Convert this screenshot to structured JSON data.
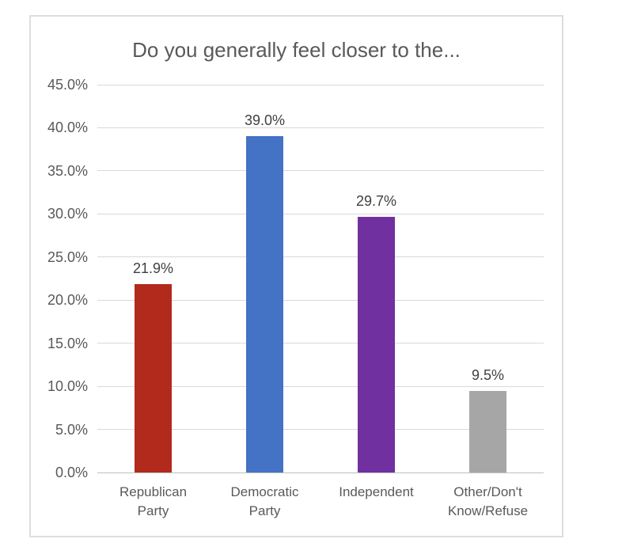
{
  "chart_data": {
    "type": "bar",
    "title": "Do you generally feel closer to the...",
    "categories": [
      "Republican Party",
      "Democratic Party",
      "Independent",
      "Other/Don't Know/Refuse"
    ],
    "values": [
      21.9,
      39.0,
      29.7,
      9.5
    ],
    "data_labels": [
      "21.9%",
      "39.0%",
      "29.7%",
      "9.5%"
    ],
    "bar_colors": [
      "#b22a1c",
      "#4472c4",
      "#7030a0",
      "#a6a6a6"
    ],
    "xlabel": "",
    "ylabel": "",
    "ylim": [
      0,
      45
    ],
    "ytick_step": 5,
    "ytick_labels": [
      "0.0%",
      "5.0%",
      "10.0%",
      "15.0%",
      "20.0%",
      "25.0%",
      "30.0%",
      "35.0%",
      "40.0%",
      "45.0%"
    ],
    "grid": "horizontal",
    "legend": "none"
  },
  "colors": {
    "background": "#ffffff",
    "panel_border": "#dddddd",
    "gridline": "#d9d9d9",
    "axis_line": "#c0c0c0",
    "title_text": "#595959",
    "tick_text": "#595959",
    "category_text": "#595959",
    "data_label_text": "#404040"
  }
}
